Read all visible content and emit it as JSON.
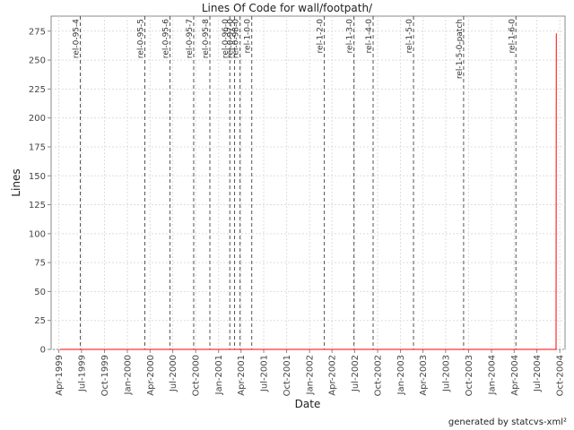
{
  "chart_data": {
    "type": "line",
    "title": "Lines Of Code for wall/footpath/",
    "x_label": "Date",
    "y_label": "Lines",
    "footer": "generated by statcvs-xml²",
    "x": [
      "1999-04-05",
      "2004-09-16",
      "2004-09-17"
    ],
    "series": [
      {
        "name": "Lines",
        "color": "#ff0000",
        "values": [
          0,
          0,
          273
        ]
      }
    ],
    "xlim": [
      "1999-03-01",
      "2004-10-22"
    ],
    "ylim": [
      0,
      288
    ],
    "yticks": [
      0,
      25,
      50,
      75,
      100,
      125,
      150,
      175,
      200,
      225,
      250,
      275
    ],
    "xticks": [
      {
        "value": "1999-04-01",
        "label": "Apr-1999"
      },
      {
        "value": "1999-07-01",
        "label": "Jul-1999"
      },
      {
        "value": "1999-10-01",
        "label": "Oct-1999"
      },
      {
        "value": "2000-01-01",
        "label": "Jan-2000"
      },
      {
        "value": "2000-04-01",
        "label": "Apr-2000"
      },
      {
        "value": "2000-07-01",
        "label": "Jul-2000"
      },
      {
        "value": "2000-10-01",
        "label": "Oct-2000"
      },
      {
        "value": "2001-01-01",
        "label": "Jan-2001"
      },
      {
        "value": "2001-04-01",
        "label": "Apr-2001"
      },
      {
        "value": "2001-07-01",
        "label": "Jul-2001"
      },
      {
        "value": "2001-10-01",
        "label": "Oct-2001"
      },
      {
        "value": "2002-01-01",
        "label": "Jan-2002"
      },
      {
        "value": "2002-04-01",
        "label": "Apr-2002"
      },
      {
        "value": "2002-07-01",
        "label": "Jul-2002"
      },
      {
        "value": "2002-10-01",
        "label": "Oct-2002"
      },
      {
        "value": "2003-01-01",
        "label": "Jan-2003"
      },
      {
        "value": "2003-04-01",
        "label": "Apr-2003"
      },
      {
        "value": "2003-07-01",
        "label": "Jul-2003"
      },
      {
        "value": "2003-10-01",
        "label": "Oct-2003"
      },
      {
        "value": "2004-01-01",
        "label": "Jan-2004"
      },
      {
        "value": "2004-04-01",
        "label": "Apr-2004"
      },
      {
        "value": "2004-07-01",
        "label": "Jul-2004"
      },
      {
        "value": "2004-10-01",
        "label": "Oct-2004"
      }
    ],
    "grid": true,
    "markers": [
      {
        "date": "1999-06-26",
        "label": "rel-0-95-4"
      },
      {
        "date": "2000-03-11",
        "label": "rel-0-95-5"
      },
      {
        "date": "2000-06-20",
        "label": "rel-0-95-6"
      },
      {
        "date": "2000-09-23",
        "label": "rel-0-95-7"
      },
      {
        "date": "2000-11-27",
        "label": "rel-0-95-8"
      },
      {
        "date": "2001-02-15",
        "label": "rel-0-96-0"
      },
      {
        "date": "2001-03-06",
        "label": "rel-0-97-0"
      },
      {
        "date": "2001-03-28",
        "label": "rel-0-98-0"
      },
      {
        "date": "2001-05-14",
        "label": "rel-1-0-0"
      },
      {
        "date": "2002-03-01",
        "label": "rel-1-2-0"
      },
      {
        "date": "2002-06-28",
        "label": "rel-1-3-0"
      },
      {
        "date": "2002-09-13",
        "label": "rel-1-4-0"
      },
      {
        "date": "2003-02-22",
        "label": "rel-1-5-0"
      },
      {
        "date": "2003-09-11",
        "label": "rel-1-5-0-patch"
      },
      {
        "date": "2004-04-08",
        "label": "rel-1-6-0"
      }
    ]
  }
}
